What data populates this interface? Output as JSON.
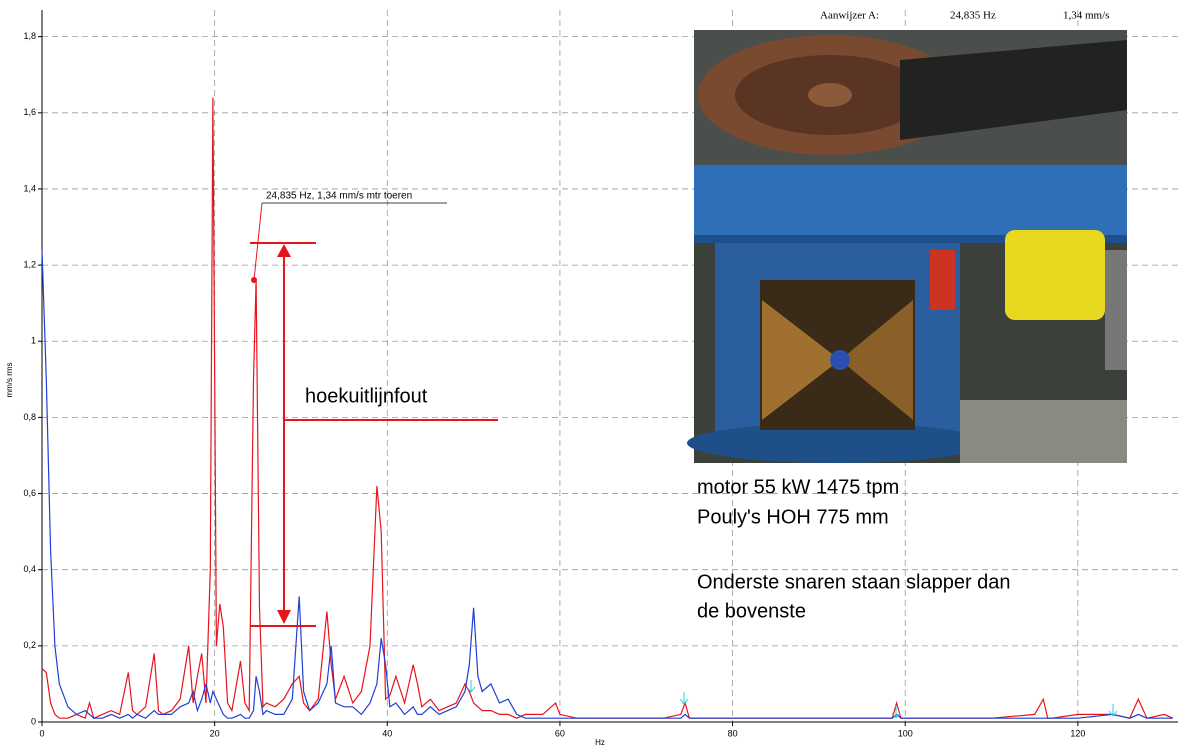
{
  "chart_data": {
    "type": "line",
    "x_label": "Hz",
    "y_label": "mm/s rms",
    "xlim": [
      0,
      131.6
    ],
    "ylim": [
      0,
      1.87
    ],
    "xticks": [
      0,
      20,
      40,
      60,
      80,
      100,
      120
    ],
    "yticks": [
      0,
      {
        "value": 0.2,
        "label": "0,2"
      },
      {
        "value": 0.4,
        "label": "0,4"
      },
      {
        "value": 0.6,
        "label": "0,6"
      },
      {
        "value": 0.8,
        "label": "0,8"
      },
      1,
      {
        "value": 1.2,
        "label": "1,2"
      },
      {
        "value": 1.4,
        "label": "1,4"
      },
      {
        "value": 1.6,
        "label": "1,6"
      },
      {
        "value": 1.8,
        "label": "1,8"
      }
    ],
    "grid": true,
    "x": [
      0,
      0.5,
      1,
      1.5,
      2,
      3,
      4,
      5,
      5.5,
      6,
      7,
      8,
      9,
      10,
      10.5,
      11,
      12,
      13,
      13.5,
      14,
      15,
      16,
      17,
      17.5,
      18,
      18.5,
      19,
      19.5,
      19.8,
      20.2,
      20.6,
      21,
      21.5,
      22,
      23,
      23.5,
      24,
      24.5,
      24.8,
      25.2,
      25.6,
      26,
      27,
      28,
      29,
      29.8,
      30.3,
      31,
      32,
      33,
      33.5,
      34,
      35,
      36,
      37,
      38,
      38.8,
      39.3,
      39.8,
      40.3,
      41,
      42,
      43,
      43.5,
      44,
      45,
      46,
      47,
      48,
      49,
      49.5,
      50,
      50.5,
      51,
      52,
      53,
      54,
      55,
      56,
      58,
      59.5,
      60,
      62,
      64,
      66,
      68,
      70,
      72,
      74,
      74.5,
      75,
      78,
      80,
      85,
      90,
      95,
      98.5,
      99,
      99.5,
      102,
      105,
      110,
      115,
      116,
      116.5,
      117,
      120,
      124,
      126,
      127,
      128,
      130,
      131
    ],
    "series": [
      {
        "color": "#e8141c",
        "values": [
          0.14,
          0.13,
          0.05,
          0.02,
          0.01,
          0.01,
          0.02,
          0.01,
          0.05,
          0.01,
          0.02,
          0.03,
          0.02,
          0.13,
          0.03,
          0.02,
          0.04,
          0.18,
          0.03,
          0.02,
          0.03,
          0.06,
          0.2,
          0.05,
          0.12,
          0.18,
          0.05,
          0.4,
          1.64,
          0.2,
          0.31,
          0.25,
          0.05,
          0.03,
          0.16,
          0.05,
          0.03,
          0.9,
          1.16,
          0.3,
          0.04,
          0.05,
          0.04,
          0.06,
          0.1,
          0.12,
          0.05,
          0.03,
          0.06,
          0.29,
          0.15,
          0.06,
          0.12,
          0.05,
          0.08,
          0.2,
          0.62,
          0.5,
          0.06,
          0.07,
          0.12,
          0.05,
          0.15,
          0.1,
          0.04,
          0.06,
          0.03,
          0.04,
          0.05,
          0.1,
          0.08,
          0.05,
          0.04,
          0.03,
          0.03,
          0.02,
          0.02,
          0.01,
          0.02,
          0.02,
          0.05,
          0.02,
          0.01,
          0.01,
          0.01,
          0.01,
          0.01,
          0.01,
          0.02,
          0.05,
          0.01,
          0.01,
          0.01,
          0.01,
          0.01,
          0.01,
          0.01,
          0.05,
          0.01,
          0.01,
          0.01,
          0.01,
          0.02,
          0.06,
          0.01,
          0.01,
          0.02,
          0.02,
          0.01,
          0.06,
          0.01,
          0.02,
          0.01
        ]
      },
      {
        "color": "#1f3fd6",
        "values": [
          1.24,
          0.9,
          0.45,
          0.2,
          0.1,
          0.04,
          0.02,
          0.03,
          0.02,
          0.01,
          0.01,
          0.02,
          0.01,
          0.02,
          0.01,
          0.02,
          0.01,
          0.03,
          0.02,
          0.02,
          0.02,
          0.04,
          0.05,
          0.08,
          0.03,
          0.06,
          0.1,
          0.05,
          0.08,
          0.06,
          0.04,
          0.02,
          0.01,
          0.01,
          0.02,
          0.01,
          0.01,
          0.03,
          0.12,
          0.08,
          0.02,
          0.03,
          0.02,
          0.02,
          0.06,
          0.33,
          0.08,
          0.03,
          0.05,
          0.1,
          0.2,
          0.05,
          0.04,
          0.04,
          0.02,
          0.05,
          0.1,
          0.22,
          0.15,
          0.04,
          0.05,
          0.02,
          0.04,
          0.02,
          0.02,
          0.04,
          0.02,
          0.03,
          0.04,
          0.08,
          0.15,
          0.3,
          0.12,
          0.08,
          0.1,
          0.05,
          0.06,
          0.02,
          0.01,
          0.01,
          0.01,
          0.01,
          0.01,
          0.01,
          0.01,
          0.01,
          0.01,
          0.01,
          0.01,
          0.02,
          0.01,
          0.01,
          0.01,
          0.01,
          0.01,
          0.01,
          0.01,
          0.02,
          0.01,
          0.01,
          0.01,
          0.01,
          0.01,
          0.01,
          0.01,
          0.01,
          0.01,
          0.02,
          0.01,
          0.02,
          0.01,
          0.01,
          0.01
        ]
      }
    ],
    "cursor": {
      "label": "Aanwijzer A:",
      "frequency": "24,835 Hz",
      "amplitude": "1,34 mm/s"
    },
    "annotations": [
      "24,835 Hz, 1,34 mm/s mtr toeren",
      "hoekuitlijnfout"
    ]
  },
  "photo_caption": [
    "motor 55 kW 1475 tpm",
    "Pouly's HOH 775 mm",
    "Onderste snaren staan slapper dan",
    "de bovenste"
  ]
}
